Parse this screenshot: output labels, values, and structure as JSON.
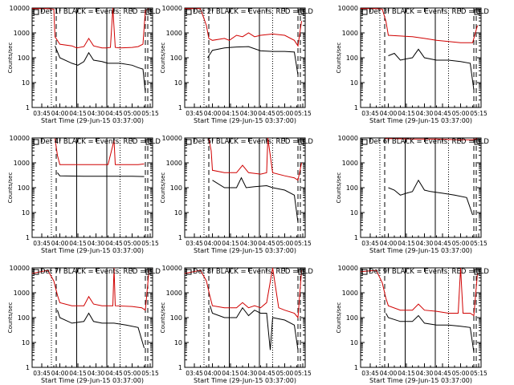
{
  "figure": {
    "xlabel": "Start Time (29-Jun-15 03:37:00)",
    "ylabel": "Counts/sec"
  },
  "chart_data": [
    {
      "type": "line",
      "title": "Det 1f BLACK = Events, RED = LLD",
      "x_ticks": [
        "03:45",
        "04:00",
        "04:15",
        "04:30",
        "04:45",
        "05:00",
        "05:15"
      ],
      "y_ticks": [
        "1",
        "10",
        "100",
        "1000",
        "10000"
      ],
      "ylim": [
        1,
        10000
      ],
      "yscale": "log",
      "xlabel": "Start Time (29-Jun-15 03:37:00)",
      "ylabel": "Counts/sec",
      "vlines_dotted": [
        "03:53",
        "04:50"
      ],
      "vlines_dashed": [
        "03:57",
        "05:11",
        "05:13"
      ],
      "vlines_solid": [
        "04:14",
        "04:39"
      ],
      "series": [
        {
          "name": "RED = LLD",
          "color": "#d00000",
          "x": [
            "03:37",
            "03:50",
            "03:55",
            "03:56",
            "04:00",
            "04:10",
            "04:14",
            "04:20",
            "04:24",
            "04:28",
            "04:35",
            "04:39",
            "04:42",
            "04:44",
            "04:46",
            "04:50",
            "05:00",
            "05:05",
            "05:09",
            "05:11",
            "05:14"
          ],
          "values": [
            9500,
            9500,
            9000,
            700,
            350,
            300,
            250,
            280,
            600,
            300,
            250,
            250,
            260,
            10000,
            260,
            250,
            260,
            280,
            350,
            8000,
            9500
          ]
        },
        {
          "name": "BLACK = Events",
          "color": "#000000",
          "x": [
            "03:56",
            "04:00",
            "04:10",
            "04:15",
            "04:20",
            "04:24",
            "04:28",
            "04:35",
            "04:40",
            "04:45",
            "04:50",
            "05:00",
            "05:05",
            "05:09",
            "05:11"
          ],
          "values": [
            300,
            100,
            60,
            50,
            70,
            160,
            80,
            70,
            60,
            60,
            60,
            50,
            40,
            35,
            4
          ]
        }
      ]
    },
    {
      "type": "line",
      "title": "Det 2f BLACK = Events, RED = LLD",
      "x_ticks": [
        "03:45",
        "04:00",
        "04:15",
        "04:30",
        "04:45",
        "05:00",
        "05:15"
      ],
      "y_ticks": [
        "1",
        "10",
        "100",
        "1000",
        "10000"
      ],
      "ylim": [
        1,
        10000
      ],
      "yscale": "log",
      "xlabel": "Start Time (29-Jun-15 03:37:00)",
      "ylabel": "Counts/sec",
      "vlines_dotted": [
        "03:53",
        "04:50"
      ],
      "vlines_dashed": [
        "03:57",
        "05:11",
        "05:13"
      ],
      "vlines_solid": [
        "04:14",
        "04:39"
      ],
      "series": [
        {
          "name": "RED = LLD",
          "color": "#d00000",
          "x": [
            "03:37",
            "03:50",
            "03:55",
            "03:57",
            "04:00",
            "04:10",
            "04:14",
            "04:20",
            "04:25",
            "04:30",
            "04:35",
            "04:40",
            "04:50",
            "05:00",
            "05:08",
            "05:11",
            "05:14"
          ],
          "values": [
            9500,
            9500,
            2000,
            600,
            500,
            600,
            500,
            800,
            700,
            1000,
            700,
            800,
            900,
            800,
            500,
            300,
            3000
          ]
        },
        {
          "name": "BLACK = Events",
          "color": "#000000",
          "x": [
            "03:56",
            "04:00",
            "04:10",
            "04:15",
            "04:20",
            "04:30",
            "04:40",
            "04:50",
            "05:00",
            "05:08",
            "05:11"
          ],
          "values": [
            100,
            200,
            250,
            260,
            270,
            280,
            190,
            180,
            180,
            170,
            20
          ]
        }
      ]
    },
    {
      "type": "line",
      "title": "Det 3f BLACK = Events, RED = LLD",
      "x_ticks": [
        "03:45",
        "04:00",
        "04:15",
        "04:30",
        "04:45",
        "05:00",
        "05:15"
      ],
      "y_ticks": [
        "1",
        "10",
        "100",
        "1000",
        "10000"
      ],
      "ylim": [
        1,
        10000
      ],
      "yscale": "log",
      "xlabel": "Start Time (29-Jun-15 03:37:00)",
      "ylabel": "Counts/sec",
      "vlines_dotted": [
        "03:53",
        "04:50"
      ],
      "vlines_dashed": [
        "03:57",
        "05:11",
        "05:13"
      ],
      "vlines_solid": [
        "04:14",
        "04:39"
      ],
      "series": [
        {
          "name": "RED = LLD",
          "color": "#d00000",
          "x": [
            "03:37",
            "03:50",
            "03:55",
            "03:58",
            "04:00",
            "04:10",
            "04:20",
            "04:30",
            "04:40",
            "04:50",
            "05:00",
            "05:10",
            "05:14"
          ],
          "values": [
            9500,
            9500,
            9000,
            3000,
            800,
            750,
            700,
            600,
            500,
            450,
            400,
            400,
            2000
          ]
        },
        {
          "name": "BLACK = Events",
          "color": "#000000",
          "x": [
            "04:00",
            "04:05",
            "04:10",
            "04:15",
            "04:20",
            "04:25",
            "04:30",
            "04:40",
            "04:50",
            "05:00",
            "05:08",
            "05:11"
          ],
          "values": [
            120,
            150,
            80,
            90,
            100,
            220,
            100,
            80,
            80,
            70,
            60,
            5
          ]
        }
      ]
    },
    {
      "type": "line",
      "title": "Det 4f BLACK = Events, RED = LLD",
      "x_ticks": [
        "03:45",
        "04:00",
        "04:15",
        "04:30",
        "04:45",
        "05:00",
        "05:15"
      ],
      "y_ticks": [
        "1",
        "10",
        "100",
        "1000",
        "10000"
      ],
      "ylim": [
        1,
        10000
      ],
      "yscale": "log",
      "xlabel": "Start Time (29-Jun-15 03:37:00)",
      "ylabel": "Counts/sec",
      "vlines_dotted": [
        "03:53",
        "04:50"
      ],
      "vlines_dashed": [
        "03:57",
        "05:11",
        "05:13"
      ],
      "vlines_solid": [
        "04:14",
        "04:39"
      ],
      "series": [
        {
          "name": "RED = LLD",
          "color": "#d00000",
          "x": [
            "03:56",
            "03:58",
            "04:00",
            "04:20",
            "04:40",
            "04:45",
            "04:46",
            "04:50",
            "05:05",
            "05:10"
          ],
          "values": [
            9500,
            2000,
            850,
            850,
            850,
            8000,
            850,
            850,
            850,
            900
          ]
        },
        {
          "name": "BLACK = Events",
          "color": "#000000",
          "x": [
            "03:58",
            "04:00",
            "04:20",
            "04:40",
            "05:00",
            "05:10"
          ],
          "values": [
            400,
            300,
            290,
            290,
            290,
            280
          ]
        }
      ]
    },
    {
      "type": "line",
      "title": "Det 5f BLACK = Events, RED = LLD",
      "x_ticks": [
        "03:45",
        "04:00",
        "04:15",
        "04:30",
        "04:45",
        "05:00",
        "05:15"
      ],
      "y_ticks": [
        "1",
        "10",
        "100",
        "1000",
        "10000"
      ],
      "ylim": [
        1,
        10000
      ],
      "yscale": "log",
      "xlabel": "Start Time (29-Jun-15 03:37:00)",
      "ylabel": "Counts/sec",
      "vlines_dotted": [
        "03:53",
        "04:50"
      ],
      "vlines_dashed": [
        "03:57",
        "05:11",
        "05:13"
      ],
      "vlines_solid": [
        "04:14",
        "04:39"
      ],
      "series": [
        {
          "name": "RED = LLD",
          "color": "#d00000",
          "x": [
            "03:57",
            "03:59",
            "04:00",
            "04:10",
            "04:20",
            "04:25",
            "04:30",
            "04:40",
            "04:45",
            "04:46",
            "04:50",
            "05:00",
            "05:08",
            "05:11",
            "05:14"
          ],
          "values": [
            9500,
            3000,
            500,
            400,
            400,
            800,
            400,
            350,
            400,
            10000,
            400,
            300,
            250,
            200,
            1000
          ]
        },
        {
          "name": "BLACK = Events",
          "color": "#000000",
          "x": [
            "04:00",
            "04:10",
            "04:20",
            "04:24",
            "04:28",
            "04:35",
            "04:45",
            "04:50",
            "05:00",
            "05:08",
            "05:11"
          ],
          "values": [
            200,
            100,
            100,
            250,
            100,
            110,
            120,
            100,
            80,
            50,
            4
          ]
        }
      ]
    },
    {
      "type": "line",
      "title": "Det 6f BLACK = Events, RED = LLD",
      "x_ticks": [
        "03:45",
        "04:00",
        "04:15",
        "04:30",
        "04:45",
        "05:00",
        "05:15"
      ],
      "y_ticks": [
        "1",
        "10",
        "100",
        "1000",
        "10000"
      ],
      "ylim": [
        1,
        10000
      ],
      "yscale": "log",
      "xlabel": "Start Time (29-Jun-15 03:37:00)",
      "ylabel": "Counts/sec",
      "vlines_dotted": [
        "03:53",
        "04:50"
      ],
      "vlines_dashed": [
        "03:57",
        "05:11",
        "05:13"
      ],
      "vlines_solid": [
        "04:14",
        "04:39"
      ],
      "series": [
        {
          "name": "RED = LLD",
          "color": "#d00000",
          "x": [
            "03:57",
            "04:00",
            "04:20",
            "04:40",
            "05:00",
            "05:10",
            "05:14"
          ],
          "values": [
            9500,
            9500,
            9000,
            9000,
            8500,
            8500,
            9500
          ]
        },
        {
          "name": "BLACK = Events",
          "color": "#000000",
          "x": [
            "04:00",
            "04:05",
            "04:10",
            "04:15",
            "04:20",
            "04:25",
            "04:30",
            "04:35",
            "04:45",
            "04:55",
            "05:05",
            "05:10"
          ],
          "values": [
            100,
            80,
            50,
            60,
            70,
            200,
            80,
            70,
            60,
            50,
            40,
            8
          ]
        }
      ]
    },
    {
      "type": "line",
      "title": "Det 7f BLACK = Events, RED = LLD",
      "x_ticks": [
        "03:45",
        "04:00",
        "04:15",
        "04:30",
        "04:45",
        "05:00",
        "05:15"
      ],
      "y_ticks": [
        "1",
        "10",
        "100",
        "1000",
        "10000"
      ],
      "ylim": [
        1,
        10000
      ],
      "yscale": "log",
      "xlabel": "Start Time (29-Jun-15 03:37:00)",
      "ylabel": "Counts/sec",
      "vlines_dotted": [
        "03:53",
        "04:50"
      ],
      "vlines_dashed": [
        "03:57",
        "05:11",
        "05:13"
      ],
      "vlines_solid": [
        "04:14",
        "04:39"
      ],
      "series": [
        {
          "name": "RED = LLD",
          "color": "#d00000",
          "x": [
            "03:37",
            "03:50",
            "03:55",
            "03:58",
            "04:00",
            "04:10",
            "04:20",
            "04:24",
            "04:28",
            "04:35",
            "04:44",
            "04:45",
            "04:46",
            "05:00",
            "05:08",
            "05:11",
            "05:14"
          ],
          "values": [
            6000,
            8000,
            3000,
            800,
            400,
            300,
            300,
            700,
            350,
            300,
            300,
            10000,
            300,
            280,
            250,
            200,
            8000
          ]
        },
        {
          "name": "BLACK = Events",
          "color": "#000000",
          "x": [
            "03:58",
            "04:00",
            "04:10",
            "04:20",
            "04:24",
            "04:28",
            "04:35",
            "04:45",
            "04:55",
            "05:05",
            "05:10"
          ],
          "values": [
            200,
            100,
            60,
            70,
            150,
            70,
            60,
            60,
            50,
            40,
            6
          ]
        }
      ]
    },
    {
      "type": "line",
      "title": "Det 8f BLACK = Events, RED = LLD",
      "x_ticks": [
        "03:45",
        "04:00",
        "04:15",
        "04:30",
        "04:45",
        "05:00",
        "05:15"
      ],
      "y_ticks": [
        "1",
        "10",
        "100",
        "1000",
        "10000"
      ],
      "ylim": [
        1,
        10000
      ],
      "yscale": "log",
      "xlabel": "Start Time (29-Jun-15 03:37:00)",
      "ylabel": "Counts/sec",
      "vlines_dotted": [
        "03:53",
        "04:50"
      ],
      "vlines_dashed": [
        "03:57",
        "05:11",
        "05:13"
      ],
      "vlines_solid": [
        "04:14",
        "04:39"
      ],
      "series": [
        {
          "name": "RED = LLD",
          "color": "#d00000",
          "x": [
            "03:37",
            "03:50",
            "03:55",
            "03:58",
            "04:00",
            "04:10",
            "04:20",
            "04:25",
            "04:30",
            "04:35",
            "04:40",
            "04:45",
            "04:50",
            "04:55",
            "05:00",
            "05:08",
            "05:11",
            "05:14"
          ],
          "values": [
            6000,
            8000,
            3000,
            700,
            300,
            250,
            250,
            400,
            250,
            300,
            250,
            400,
            10000,
            250,
            200,
            150,
            100,
            8000
          ]
        },
        {
          "name": "BLACK = Events",
          "color": "#000000",
          "x": [
            "03:58",
            "04:00",
            "04:10",
            "04:20",
            "04:25",
            "04:30",
            "04:35",
            "04:40",
            "04:45",
            "04:48",
            "04:50",
            "05:00",
            "05:08",
            "05:11"
          ],
          "values": [
            300,
            150,
            100,
            100,
            250,
            120,
            200,
            150,
            150,
            5,
            100,
            80,
            50,
            5
          ]
        }
      ]
    },
    {
      "type": "line",
      "title": "Det 9f BLACK = Events, RED = LLD",
      "x_ticks": [
        "03:45",
        "04:00",
        "04:15",
        "04:30",
        "04:45",
        "05:00",
        "05:15"
      ],
      "y_ticks": [
        "1",
        "10",
        "100",
        "1000",
        "10000"
      ],
      "ylim": [
        1,
        10000
      ],
      "yscale": "log",
      "xlabel": "Start Time (29-Jun-15 03:37:00)",
      "ylabel": "Counts/sec",
      "vlines_dotted": [
        "03:53",
        "04:50"
      ],
      "vlines_dashed": [
        "03:57",
        "05:11",
        "05:13"
      ],
      "vlines_solid": [
        "04:14",
        "04:39"
      ],
      "series": [
        {
          "name": "RED = LLD",
          "color": "#d00000",
          "x": [
            "03:37",
            "03:50",
            "03:55",
            "03:58",
            "04:00",
            "04:10",
            "04:20",
            "04:25",
            "04:30",
            "04:40",
            "04:50",
            "04:58",
            "05:00",
            "05:02",
            "05:08",
            "05:11",
            "05:14"
          ],
          "values": [
            7000,
            8000,
            2500,
            600,
            300,
            200,
            200,
            350,
            200,
            180,
            150,
            150,
            10000,
            150,
            150,
            120,
            6000
          ]
        },
        {
          "name": "BLACK = Events",
          "color": "#000000",
          "x": [
            "03:58",
            "04:00",
            "04:10",
            "04:20",
            "04:25",
            "04:30",
            "04:40",
            "04:50",
            "05:00",
            "05:08",
            "05:11"
          ],
          "values": [
            150,
            100,
            70,
            70,
            120,
            60,
            50,
            50,
            45,
            40,
            4
          ]
        }
      ]
    }
  ]
}
